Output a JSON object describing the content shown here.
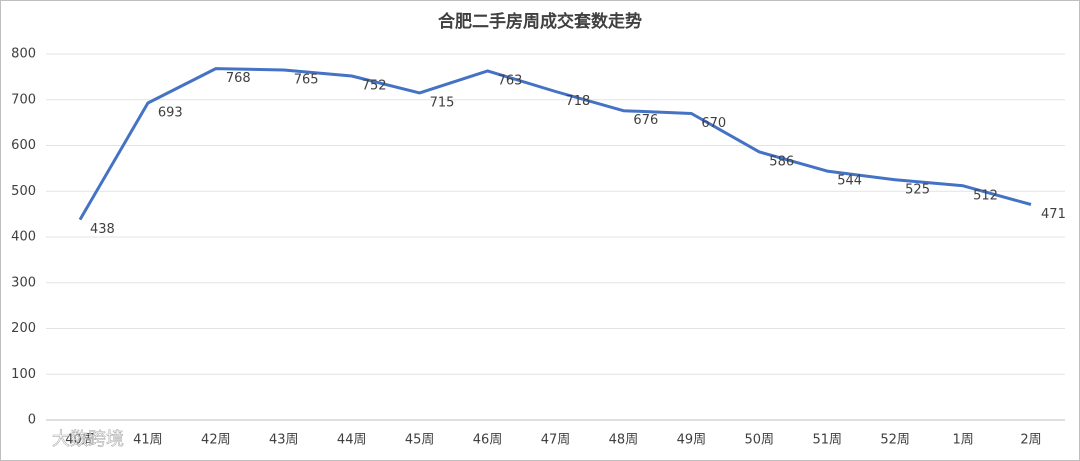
{
  "chart_data": {
    "type": "line",
    "title": "合肥二手房周成交套数走势",
    "categories": [
      "40周",
      "41周",
      "42周",
      "43周",
      "44周",
      "45周",
      "46周",
      "47周",
      "48周",
      "49周",
      "50周",
      "51周",
      "52周",
      "1周",
      "2周"
    ],
    "series": [
      {
        "name": "成交套数",
        "color": "#4472c4",
        "values": [
          438,
          693,
          768,
          765,
          752,
          715,
          763,
          718,
          676,
          670,
          586,
          544,
          525,
          512,
          471
        ]
      }
    ],
    "ylim": [
      0,
      800
    ],
    "yticks": [
      0,
      100,
      200,
      300,
      400,
      500,
      600,
      700,
      800
    ],
    "grid": true,
    "watermark": "大数跨境"
  }
}
